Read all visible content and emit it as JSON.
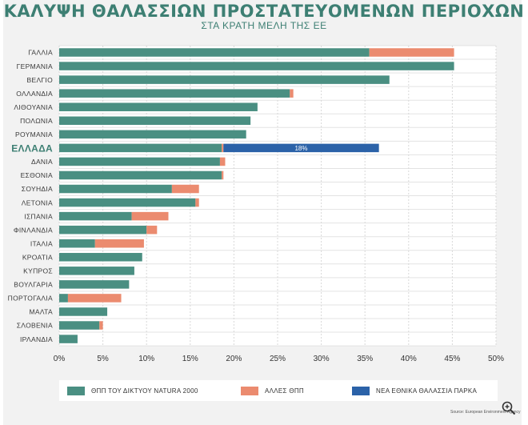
{
  "header": {
    "title": "ΚΑΛΥΨΗ ΘΑΛΑΣΣΙΩΝ ΠΡΟΣΤΑΤΕΥΟΜΕΝΩΝ ΠΕΡΙΟΧΩΝ",
    "subtitle": "ΣΤΑ ΚΡΑΤΗ ΜΕΛΗ ΤΗΣ ΕΕ"
  },
  "source": "Source: European Environment Agency",
  "zoom_icon": "zoom-in-icon",
  "colors": {
    "natura": "#4a8f82",
    "other": "#eb8b6f",
    "park": "#2b62a8",
    "highlight_label": "#3d7f73"
  },
  "chart_data": {
    "type": "bar",
    "orientation": "horizontal",
    "stacked": true,
    "categories": [
      "ΓΑΛΛΙΑ",
      "ΓΕΡΜΑΝΙΑ",
      "ΒΕΛΓΙΟ",
      "ΟΛΛΑΝΔΙΑ",
      "ΛΙΘΟΥΑΝΙΑ",
      "ΠΟΛΩΝΙΑ",
      "ΡΟΥΜΑΝΙΑ",
      "ΕΛΛΑΔΑ",
      "ΔΑΝΙΑ",
      "ΕΣΘΟΝΙΑ",
      "ΣΟΥΗΔΙΑ",
      "ΛΕΤΟΝΙΑ",
      "ΙΣΠΑΝΙΑ",
      "ΦΙΝΛΑΝΔΙΑ",
      "ΙΤΑΛΙΑ",
      "ΚΡΟΑΤΙΑ",
      "ΚΥΠΡΟΣ",
      "ΒΟΥΛΓΑΡΙΑ",
      "ΠΟΡΤΟΓΑΛΙΑ",
      "ΜΑΛΤΑ",
      "ΣΛΟΒΕΝΙΑ",
      "ΙΡΛΑΝΔΙΑ"
    ],
    "highlight_category": "ΕΛΛΑΔΑ",
    "series": [
      {
        "name": "ΘΠΠ ΤΟΥ ΔΙΚΤΥΟΥ NATURA 2000",
        "color": "#4a8f82",
        "values": [
          35.5,
          45.2,
          37.8,
          26.4,
          22.7,
          21.9,
          21.4,
          18.6,
          18.4,
          18.6,
          12.9,
          15.6,
          8.3,
          10.0,
          4.1,
          9.5,
          8.6,
          8.0,
          1.0,
          5.5,
          4.6,
          2.1
        ]
      },
      {
        "name": "ΑΛΛΕΣ ΘΠΠ",
        "color": "#eb8b6f",
        "values": [
          9.7,
          0.0,
          0.0,
          0.4,
          0.0,
          0.0,
          0.0,
          0.2,
          0.6,
          0.2,
          3.1,
          0.4,
          4.2,
          1.2,
          5.6,
          0.0,
          0.0,
          0.0,
          6.1,
          0.0,
          0.4,
          0.0
        ]
      },
      {
        "name": "ΝΕΑ ΕΘΝΙΚΑ ΘΑΛΑΣΣΙΑ ΠΑΡΚΑ",
        "color": "#2b62a8",
        "values": [
          0,
          0,
          0,
          0,
          0,
          0,
          0,
          17.8,
          0,
          0,
          0,
          0,
          0,
          0,
          0,
          0,
          0,
          0,
          0,
          0,
          0,
          0
        ]
      }
    ],
    "annotations": [
      {
        "category": "ΕΛΛΑΔΑ",
        "series": "ΝΕΑ ΕΘΝΙΚΑ ΘΑΛΑΣΣΙΑ ΠΑΡΚΑ",
        "text": "18%"
      }
    ],
    "xticks": [
      "0%",
      "5%",
      "10%",
      "15%",
      "20%",
      "25%",
      "30%",
      "35%",
      "40%",
      "45%",
      "50%"
    ],
    "xlim": [
      0,
      50
    ],
    "grid": true,
    "legend_position": "bottom"
  }
}
